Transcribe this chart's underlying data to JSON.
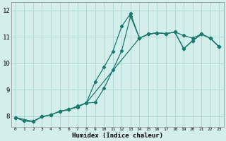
{
  "xlabel": "Humidex (Indice chaleur)",
  "bg_color": "#d4eeeb",
  "grid_color": "#b0d8d4",
  "line_color": "#1a7a6e",
  "xlim": [
    -0.5,
    23.5
  ],
  "ylim": [
    7.6,
    12.3
  ],
  "xticks": [
    0,
    1,
    2,
    3,
    4,
    5,
    6,
    7,
    8,
    9,
    10,
    11,
    12,
    13,
    14,
    15,
    16,
    17,
    18,
    19,
    20,
    21,
    22,
    23
  ],
  "yticks": [
    8,
    9,
    10,
    11,
    12
  ],
  "line1_x": [
    0,
    1,
    2,
    3,
    4,
    5,
    6,
    7,
    8,
    9,
    10,
    11,
    12,
    13,
    14,
    15,
    16,
    17,
    18,
    19,
    20,
    21,
    22,
    23
  ],
  "line1_y": [
    7.95,
    7.82,
    7.8,
    7.98,
    8.05,
    8.18,
    8.25,
    8.35,
    8.5,
    9.3,
    9.85,
    10.45,
    11.4,
    11.88,
    10.95,
    11.1,
    11.15,
    11.12,
    11.18,
    11.05,
    10.95,
    11.1,
    10.95,
    10.62
  ],
  "line2_x": [
    0,
    1,
    2,
    3,
    4,
    5,
    6,
    7,
    8,
    9,
    10,
    11,
    12,
    13,
    14,
    15,
    16,
    17,
    18,
    19,
    20,
    21,
    22,
    23
  ],
  "line2_y": [
    7.95,
    7.82,
    7.8,
    7.98,
    8.05,
    8.18,
    8.25,
    8.38,
    8.5,
    8.52,
    9.05,
    9.75,
    10.48,
    11.78,
    10.95,
    11.1,
    11.15,
    11.12,
    11.18,
    10.55,
    10.85,
    11.1,
    10.95,
    10.62
  ],
  "line3_x": [
    0,
    2,
    3,
    4,
    5,
    6,
    7,
    8,
    14,
    15,
    16,
    17,
    18,
    19,
    20,
    21,
    22,
    23
  ],
  "line3_y": [
    7.95,
    7.8,
    7.98,
    8.05,
    8.18,
    8.25,
    8.35,
    8.5,
    10.95,
    11.1,
    11.15,
    11.12,
    11.18,
    10.55,
    10.85,
    11.1,
    10.95,
    10.62
  ]
}
